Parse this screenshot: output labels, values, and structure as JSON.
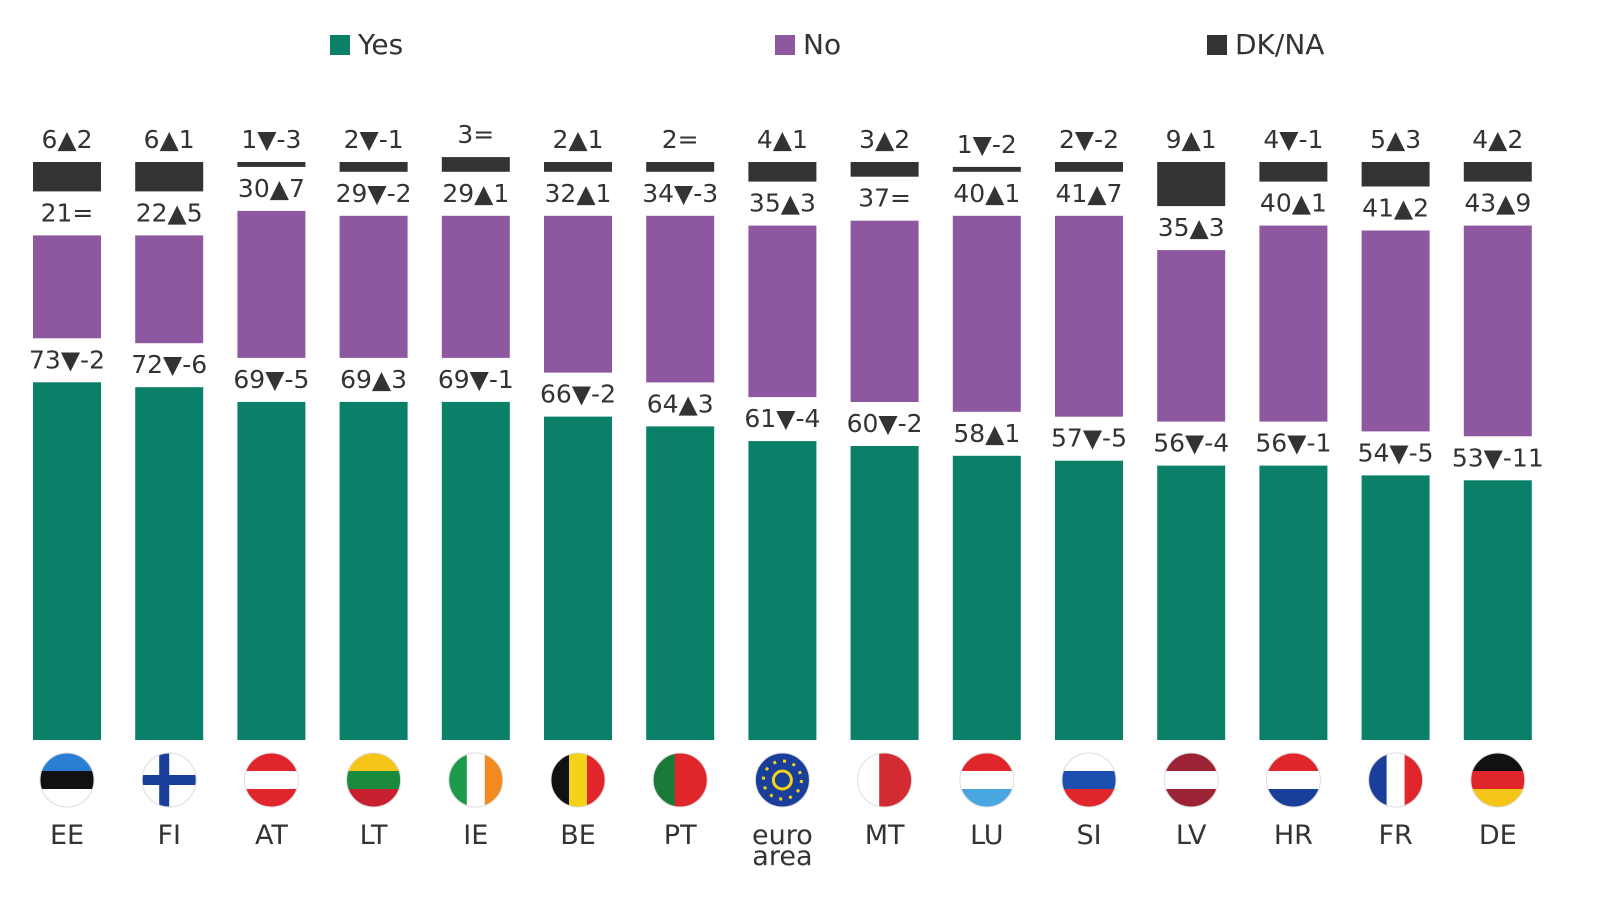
{
  "chart_data": {
    "type": "stacked-bar",
    "categories": [
      "EE",
      "FI",
      "AT",
      "LT",
      "IE",
      "BE",
      "PT",
      "euro area",
      "MT",
      "LU",
      "SI",
      "LV",
      "HR",
      "FR",
      "DE"
    ],
    "series": [
      {
        "name": "Yes",
        "color": "#0a8068",
        "values": [
          73,
          72,
          69,
          69,
          69,
          66,
          64,
          61,
          60,
          58,
          57,
          56,
          56,
          54,
          53
        ],
        "value_labels": [
          "73▼-2",
          "72▼-6",
          "69▼-5",
          "69▲3",
          "69▼-1",
          "66▼-2",
          "64▲3",
          "61▼-4",
          "60▼-2",
          "58▲1",
          "57▼-5",
          "56▼-4",
          "56▼-1",
          "54▼-5",
          "53▼-11"
        ]
      },
      {
        "name": "No",
        "color": "#8e58a0",
        "values": [
          21,
          22,
          30,
          29,
          29,
          32,
          34,
          35,
          37,
          40,
          41,
          35,
          40,
          41,
          43
        ],
        "value_labels": [
          "21=",
          "22▲5",
          "30▲7",
          "29▼-2",
          "29▲1",
          "32▲1",
          "34▼-3",
          "35▲3",
          "37=",
          "40▲1",
          "41▲7",
          "35▲3",
          "40▲1",
          "41▲2",
          "43▲9"
        ]
      },
      {
        "name": "DK/NA",
        "color": "#333333",
        "values": [
          6,
          6,
          1,
          2,
          3,
          2,
          2,
          4,
          3,
          1,
          2,
          9,
          4,
          5,
          4
        ],
        "value_labels": [
          "6▲2",
          "6▲1",
          "1▼-3",
          "2▼-1",
          "3=",
          "2▲1",
          "2=",
          "4▲1",
          "3▲2",
          "1▼-2",
          "2▼-2",
          "9▲1",
          "4▼-1",
          "5▲3",
          "4▲2"
        ]
      }
    ]
  }
}
